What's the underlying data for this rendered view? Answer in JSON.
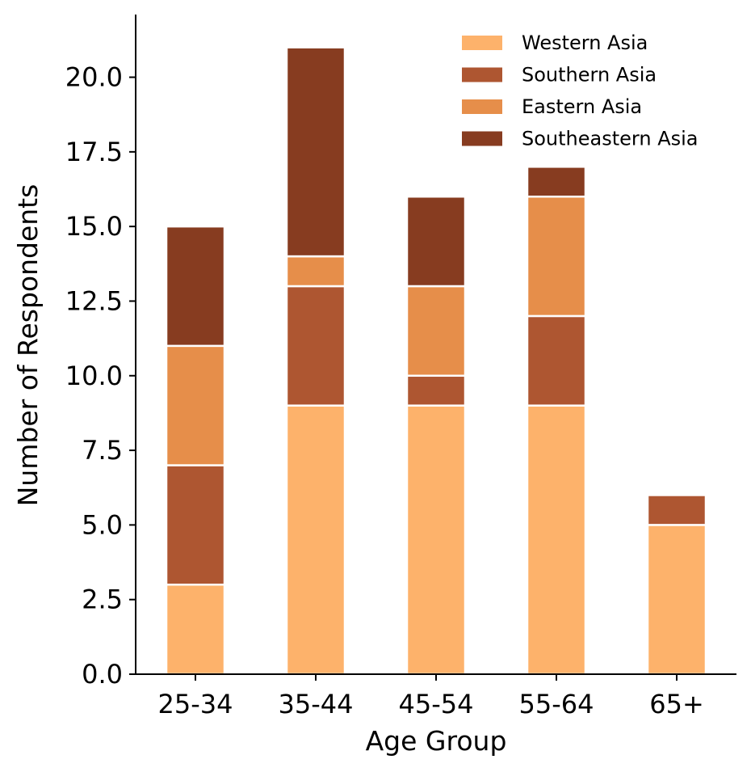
{
  "chart_data": {
    "type": "bar",
    "stacked": true,
    "title": "",
    "xlabel": "Age Group",
    "ylabel": "Number of Respondents",
    "categories": [
      "25-34",
      "35-44",
      "45-54",
      "55-64",
      "65+"
    ],
    "series": [
      {
        "name": "Western Asia",
        "color": "#FDB26B",
        "values": [
          3,
          9,
          9,
          9,
          5
        ]
      },
      {
        "name": "Southern Asia",
        "color": "#AE5631",
        "values": [
          4,
          4,
          1,
          3,
          1
        ]
      },
      {
        "name": "Eastern Asia",
        "color": "#E68E4A",
        "values": [
          4,
          1,
          3,
          4,
          0
        ]
      },
      {
        "name": "Southeastern Asia",
        "color": "#873C20",
        "values": [
          4,
          7,
          3,
          1,
          0
        ]
      }
    ],
    "ylim": [
      0,
      22.1
    ],
    "yticks": [
      0.0,
      2.5,
      5.0,
      7.5,
      10.0,
      12.5,
      15.0,
      17.5,
      20.0
    ],
    "ytick_labels": [
      "0.0",
      "2.5",
      "5.0",
      "7.5",
      "10.0",
      "12.5",
      "15.0",
      "17.5",
      "20.0"
    ],
    "grid": false,
    "legend_position": "top-right"
  }
}
